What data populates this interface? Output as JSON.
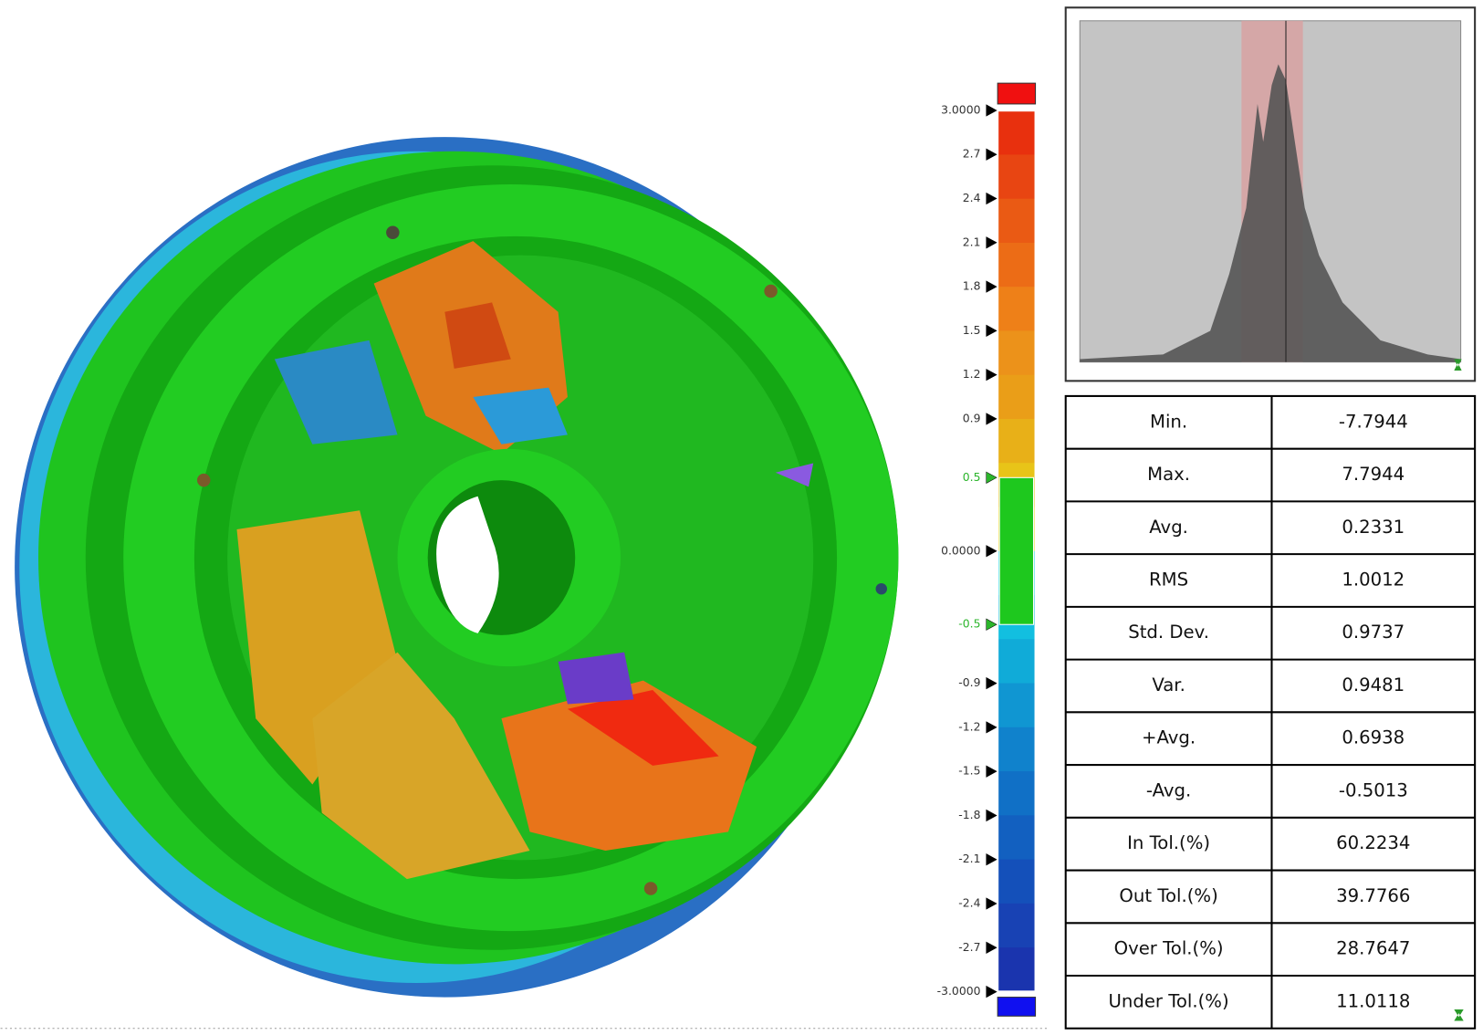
{
  "colorbar": {
    "ticks": [
      {
        "value": 3,
        "label": "3.0000"
      },
      {
        "value": 2.7,
        "label": "2.7"
      },
      {
        "value": 2.4,
        "label": "2.4"
      },
      {
        "value": 2.1,
        "label": "2.1"
      },
      {
        "value": 1.8,
        "label": "1.8"
      },
      {
        "value": 1.5,
        "label": "1.5"
      },
      {
        "value": 1.2,
        "label": "1.2"
      },
      {
        "value": 0.9,
        "label": "0.9"
      },
      {
        "value": 0.5,
        "label": "0.5",
        "color": "#2cb52c"
      },
      {
        "value": 0,
        "label": "0.0000"
      },
      {
        "value": -0.5,
        "label": "-0.5",
        "color": "#2cb52c"
      },
      {
        "value": -0.9,
        "label": "-0.9"
      },
      {
        "value": -1.2,
        "label": "-1.2"
      },
      {
        "value": -1.5,
        "label": "-1.5"
      },
      {
        "value": -1.8,
        "label": "-1.8"
      },
      {
        "value": -2.1,
        "label": "-2.1"
      },
      {
        "value": -2.4,
        "label": "-2.4"
      },
      {
        "value": -2.7,
        "label": "-2.7"
      },
      {
        "value": -3,
        "label": "-3.0000"
      }
    ]
  },
  "stats_table": {
    "rows": [
      [
        "Min.",
        "-7.7944"
      ],
      [
        "Max.",
        "7.7944"
      ],
      [
        "Avg.",
        "0.2331"
      ],
      [
        "RMS",
        "1.0012"
      ],
      [
        "Std. Dev.",
        "0.9737"
      ],
      [
        "Var.",
        "0.9481"
      ],
      [
        "+Avg.",
        "0.6938"
      ],
      [
        "-Avg.",
        "-0.5013"
      ],
      [
        "In Tol.(%)",
        "60.2234"
      ],
      [
        "Out Tol.(%)",
        "39.7766"
      ],
      [
        "Over Tol.(%)",
        "28.7647"
      ],
      [
        "Under Tol.(%)",
        "11.0118"
      ]
    ]
  }
}
